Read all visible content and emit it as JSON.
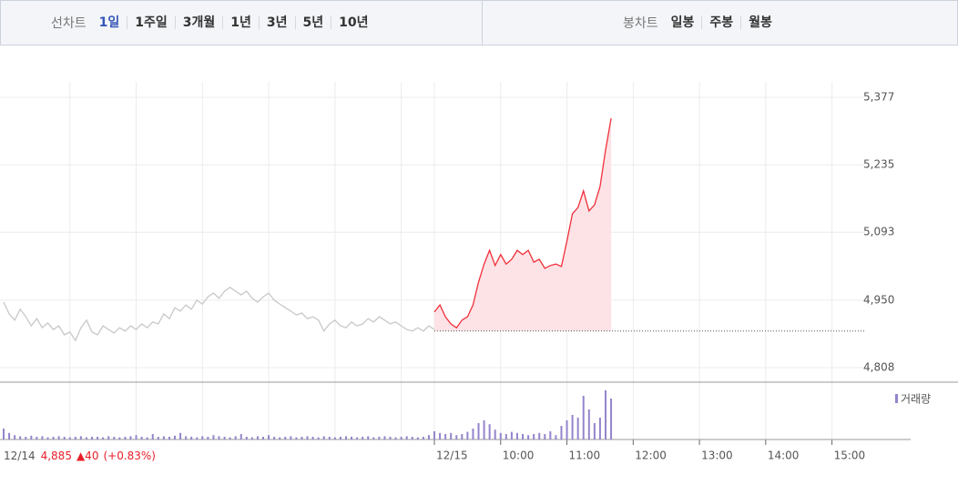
{
  "tabs": {
    "line_chart": {
      "label": "선차트",
      "items": [
        "1일",
        "1주일",
        "3개월",
        "1년",
        "3년",
        "5년",
        "10년"
      ],
      "active": 0
    },
    "candle_chart": {
      "label": "봉차트",
      "items": [
        "일봉",
        "주봉",
        "월봉"
      ]
    }
  },
  "chart_data": {
    "type": "line",
    "xlim": [
      0,
      156
    ],
    "ylim": [
      4808,
      5377
    ],
    "yticks": [
      {
        "value": 4808,
        "label": "4,808"
      },
      {
        "value": 4950,
        "label": "4,950"
      },
      {
        "value": 5093,
        "label": "5,093"
      },
      {
        "value": 5235,
        "label": "5,235"
      },
      {
        "value": 5377,
        "label": "5,377"
      }
    ],
    "xticks": [
      {
        "value": 12,
        "label": null
      },
      {
        "value": 24,
        "label": null
      },
      {
        "value": 36,
        "label": null
      },
      {
        "value": 48,
        "label": null
      },
      {
        "value": 60,
        "label": null
      },
      {
        "value": 72,
        "label": null
      },
      {
        "value": 78,
        "label": "12/15"
      },
      {
        "value": 90,
        "label": "10:00"
      },
      {
        "value": 102,
        "label": "11:00"
      },
      {
        "value": 114,
        "label": "12:00"
      },
      {
        "value": 126,
        "label": "13:00"
      },
      {
        "value": 138,
        "label": "14:00"
      },
      {
        "value": 150,
        "label": "15:00"
      }
    ],
    "grid": true,
    "prev_day": {
      "color": "#c8c8c8",
      "values": [
        4946,
        4921,
        4908,
        4931,
        4915,
        4896,
        4911,
        4892,
        4902,
        4888,
        4896,
        4877,
        4883,
        4865,
        4892,
        4908,
        4883,
        4877,
        4896,
        4888,
        4881,
        4892,
        4885,
        4896,
        4888,
        4900,
        4892,
        4904,
        4900,
        4921,
        4911,
        4934,
        4927,
        4940,
        4931,
        4950,
        4942,
        4957,
        4965,
        4954,
        4969,
        4977,
        4969,
        4961,
        4969,
        4954,
        4946,
        4957,
        4965,
        4950,
        4942,
        4934,
        4927,
        4919,
        4923,
        4911,
        4915,
        4908,
        4885,
        4900,
        4908,
        4896,
        4892,
        4904,
        4896,
        4900,
        4911,
        4904,
        4915,
        4908,
        4900,
        4904,
        4896,
        4888,
        4885,
        4892,
        4885,
        4896,
        4888,
        null,
        null,
        null,
        null,
        null,
        null,
        null,
        null,
        null,
        null,
        null,
        null,
        null,
        null,
        null,
        null,
        null,
        null,
        null,
        null,
        null,
        null,
        null,
        null,
        null,
        null,
        null,
        null,
        null,
        null,
        null,
        null,
        null,
        null,
        null,
        null,
        null,
        null,
        null,
        null,
        null,
        null,
        null,
        null,
        null,
        null,
        null,
        null,
        null,
        null,
        null,
        null,
        null,
        null,
        null,
        null,
        null,
        null,
        null,
        null,
        null,
        null,
        null,
        null,
        null,
        null,
        null,
        null,
        null,
        null,
        null,
        null,
        null,
        null,
        null,
        null,
        null,
        null
      ]
    },
    "today": {
      "color": "#f0303a",
      "fill": "#fde3e6",
      "values": [
        null,
        null,
        null,
        null,
        null,
        null,
        null,
        null,
        null,
        null,
        null,
        null,
        null,
        null,
        null,
        null,
        null,
        null,
        null,
        null,
        null,
        null,
        null,
        null,
        null,
        null,
        null,
        null,
        null,
        null,
        null,
        null,
        null,
        null,
        null,
        null,
        null,
        null,
        null,
        null,
        null,
        null,
        null,
        null,
        null,
        null,
        null,
        null,
        null,
        null,
        null,
        null,
        null,
        null,
        null,
        null,
        null,
        null,
        null,
        null,
        null,
        null,
        null,
        null,
        null,
        null,
        null,
        null,
        null,
        null,
        null,
        null,
        null,
        null,
        null,
        null,
        null,
        null,
        4925,
        4940,
        4915,
        4900,
        4892,
        4908,
        4915,
        4940,
        4988,
        5026,
        5055,
        5023,
        5046,
        5026,
        5036,
        5055,
        5046,
        5055,
        5030,
        5036,
        5017,
        5023,
        5026,
        5021,
        5074,
        5132,
        5145,
        5180,
        5138,
        5151,
        5189,
        5266,
        5333,
        null,
        null,
        null,
        null,
        null,
        null,
        null,
        null,
        null,
        null,
        null,
        null,
        null,
        null,
        null,
        null,
        null,
        null,
        null,
        null,
        null,
        null,
        null,
        null,
        null,
        null,
        null,
        null,
        null,
        null,
        null,
        null,
        null,
        null,
        null,
        null,
        null,
        null,
        null,
        null,
        null,
        null,
        null,
        null,
        null,
        null
      ]
    },
    "volume": {
      "name": "거래량",
      "color": "#9484cc",
      "ylim": [
        0,
        100
      ],
      "values": [
        20,
        12,
        8,
        6,
        5,
        7,
        5,
        6,
        4,
        5,
        6,
        5,
        4,
        5,
        6,
        4,
        5,
        5,
        4,
        6,
        5,
        4,
        5,
        6,
        8,
        5,
        4,
        10,
        5,
        6,
        5,
        7,
        12,
        6,
        5,
        4,
        6,
        5,
        8,
        6,
        5,
        4,
        6,
        10,
        5,
        4,
        6,
        5,
        8,
        5,
        4,
        5,
        6,
        4,
        5,
        6,
        5,
        4,
        6,
        5,
        4,
        5,
        6,
        5,
        4,
        5,
        6,
        4,
        5,
        6,
        5,
        4,
        5,
        6,
        5,
        4,
        5,
        8,
        15,
        12,
        10,
        12,
        8,
        10,
        14,
        20,
        30,
        35,
        28,
        18,
        12,
        10,
        14,
        12,
        10,
        8,
        10,
        12,
        10,
        15,
        8,
        25,
        35,
        45,
        40,
        80,
        55,
        30,
        40,
        90,
        75,
        null,
        null,
        null,
        null,
        null,
        null,
        null,
        null,
        null,
        null,
        null,
        null,
        null,
        null,
        null,
        null,
        null,
        null,
        null,
        null,
        null,
        null,
        null,
        null,
        null,
        null,
        null,
        null,
        null,
        null,
        null,
        null,
        null,
        null,
        null,
        null,
        null,
        null,
        null,
        null,
        null,
        null,
        null,
        null,
        null,
        null
      ]
    },
    "summary": {
      "date": "12/14",
      "close": {
        "value": 4885,
        "label": "4,885"
      },
      "change": {
        "value": 40,
        "label": "▲40"
      },
      "change_pct": {
        "value": 0.83,
        "label": "(+0.83%)"
      }
    }
  }
}
